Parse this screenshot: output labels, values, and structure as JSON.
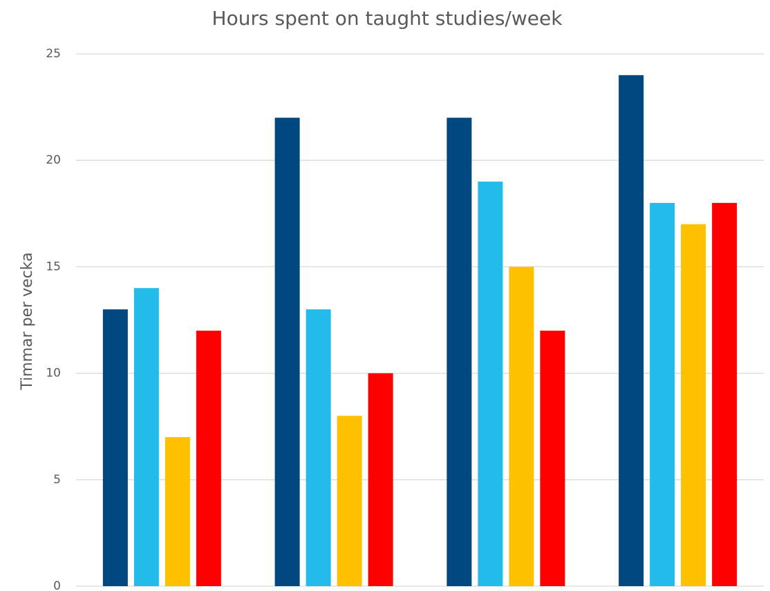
{
  "chart_data": {
    "type": "bar",
    "title": "Hours spent on taught studies/week",
    "y_label": "Timmar per vecka",
    "categories": [
      null,
      null,
      null,
      null
    ],
    "series": [
      {
        "color": "#00487f",
        "values": [
          13,
          22,
          22,
          24
        ]
      },
      {
        "color": "#22bbea",
        "values": [
          14,
          13,
          19,
          18
        ]
      },
      {
        "color": "#ffc000",
        "values": [
          7,
          8,
          15,
          17
        ]
      },
      {
        "color": "#ff0000",
        "values": [
          12,
          10,
          12,
          18
        ]
      }
    ],
    "ylim": [
      0,
      25
    ],
    "yticks": [
      0,
      5,
      10,
      15,
      20,
      25
    ],
    "grid": true
  }
}
